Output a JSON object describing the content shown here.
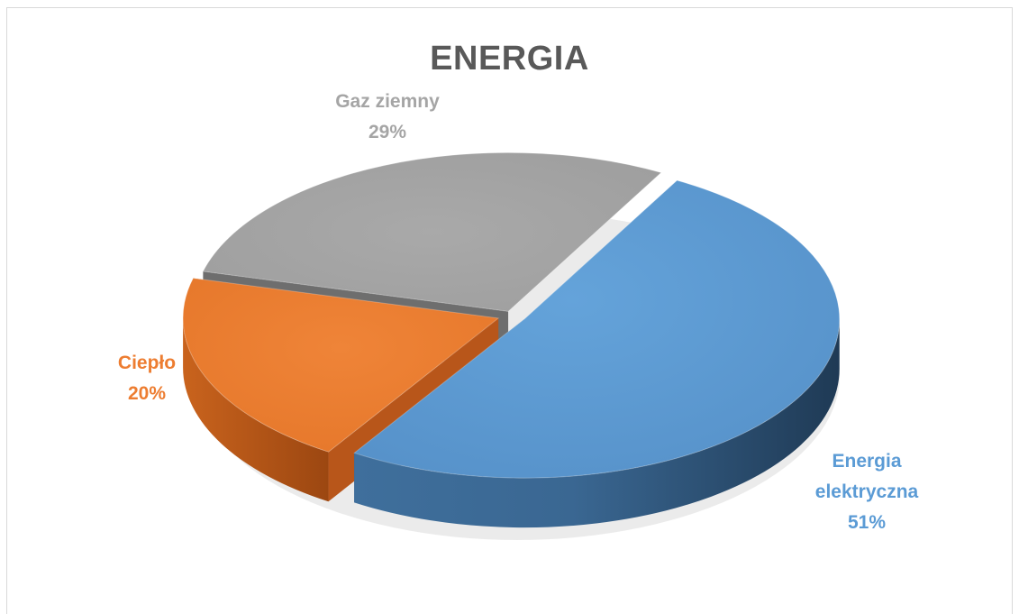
{
  "chart_data": {
    "type": "pie",
    "title": "ENERGIA",
    "categories": [
      "Energia elektryczna",
      "Ciepło",
      "Gaz ziemny"
    ],
    "values": [
      51,
      20,
      29
    ],
    "labels": [
      {
        "name": "Energia elektryczna",
        "percent": "51%"
      },
      {
        "name": "Ciepło",
        "percent": "20%"
      },
      {
        "name": "Gaz ziemny",
        "percent": "29%"
      }
    ],
    "colors": [
      "#5b9bd5",
      "#ed7d31",
      "#a5a5a5"
    ],
    "style": "3d-exploded"
  }
}
